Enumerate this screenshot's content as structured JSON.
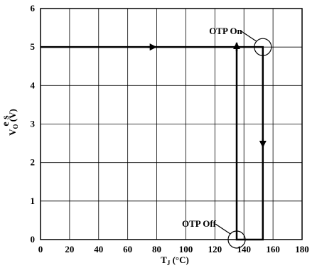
{
  "chart_data": {
    "type": "line",
    "xlabel_main": "T",
    "xlabel_sub": "J",
    "xlabel_unit": " (°C)",
    "ylabel_main": "V",
    "ylabel_sub": "O",
    "ylabel_unit": " (V)",
    "edge_text": "e s",
    "xlim": [
      0,
      180
    ],
    "ylim": [
      0,
      6
    ],
    "x_ticks": [
      0,
      20,
      40,
      60,
      80,
      100,
      120,
      140,
      160,
      180
    ],
    "y_ticks": [
      0,
      1,
      2,
      3,
      4,
      5,
      6
    ],
    "x_tick_labels": [
      "0",
      "20",
      "40",
      "60",
      "80",
      "100",
      "120",
      "140",
      "160",
      "180"
    ],
    "y_tick_labels": [
      "0",
      "1",
      "2",
      "3",
      "4",
      "5",
      "6"
    ],
    "grid": true,
    "series": [
      {
        "points": [
          {
            "x": 0,
            "y": 5
          },
          {
            "x": 153,
            "y": 5
          },
          {
            "x": 153,
            "y": 0
          },
          {
            "x": 135,
            "y": 0
          },
          {
            "x": 135,
            "y": 5
          }
        ]
      }
    ],
    "annotations": [
      {
        "text": "OTP On",
        "x": 153,
        "y": 5
      },
      {
        "text": "OTP Off",
        "x": 135,
        "y": 0
      }
    ]
  },
  "colors": {
    "line": "#000000",
    "grid": "#000000",
    "background": "#ffffff"
  }
}
